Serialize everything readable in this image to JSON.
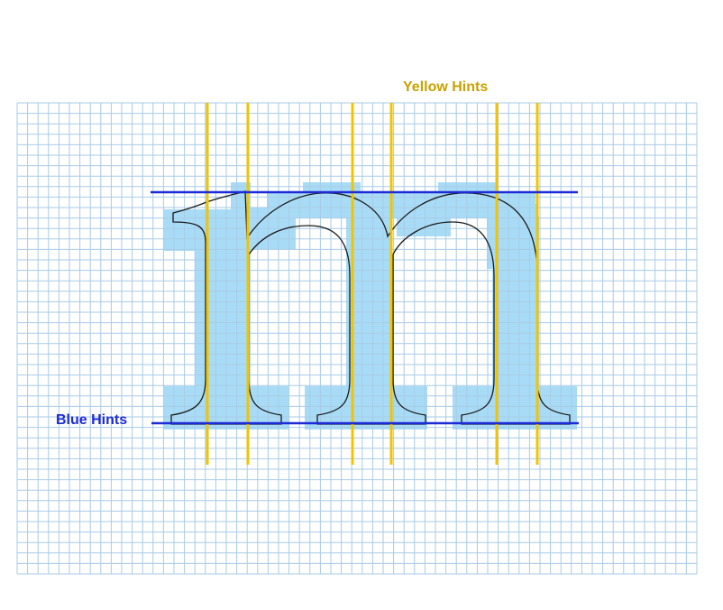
{
  "labels": {
    "yellow_hints": "Yellow Hints",
    "blue_hints": "Blue Hints"
  },
  "glyph": {
    "character": "m"
  },
  "colors": {
    "background": "#ffffff",
    "grid_line": "#a9cbe6",
    "pixel_fill": "#a8dcf6",
    "yellow_hint": "#f2c400",
    "yellow_label": "#c9a100",
    "blue_hint": "#1d2bd6",
    "blue_label": "#1d2bd6",
    "outline": "#1a1a1a"
  }
}
